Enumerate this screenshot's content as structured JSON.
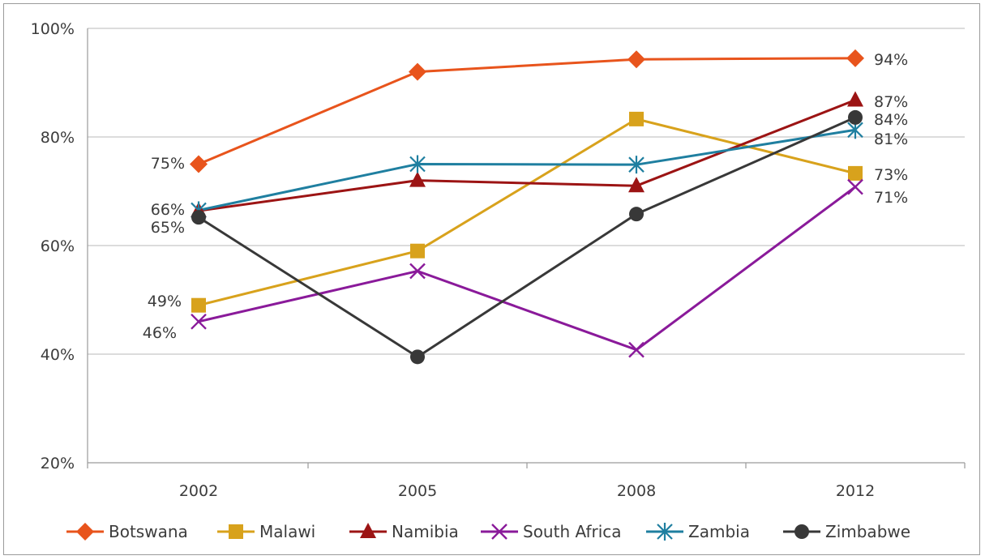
{
  "chart_data": {
    "type": "line",
    "x": [
      "2002",
      "2005",
      "2008",
      "2012"
    ],
    "ylim": [
      20,
      100
    ],
    "yticks": [
      "20%",
      "40%",
      "60%",
      "80%",
      "100%"
    ],
    "grid": true,
    "legend_position": "bottom",
    "series": [
      {
        "name": "Botswana",
        "color": "#e8541c",
        "marker": "diamond",
        "values": [
          75,
          92,
          94.3,
          94.5
        ],
        "labels": [
          "75%",
          null,
          null,
          "94%"
        ]
      },
      {
        "name": "Malawi",
        "color": "#d8a21c",
        "marker": "square",
        "values": [
          49,
          59,
          83.3,
          73.3
        ],
        "labels": [
          "49%",
          null,
          null,
          "73%"
        ]
      },
      {
        "name": "Namibia",
        "color": "#9c1414",
        "marker": "triangle",
        "values": [
          66.4,
          72,
          71,
          86.8
        ],
        "labels": [
          null,
          null,
          null,
          "87%"
        ]
      },
      {
        "name": "South Africa",
        "color": "#8a1a9a",
        "marker": "x",
        "values": [
          46,
          55.3,
          40.8,
          70.8
        ],
        "labels": [
          "46%",
          null,
          null,
          "71%"
        ]
      },
      {
        "name": "Zambia",
        "color": "#1f7fa0",
        "marker": "star",
        "values": [
          66.5,
          75,
          74.9,
          81.3
        ],
        "labels": [
          "66%",
          null,
          null,
          "81%"
        ]
      },
      {
        "name": "Zimbabwe",
        "color": "#383838",
        "marker": "circle",
        "values": [
          65.2,
          39.5,
          65.8,
          83.6
        ],
        "labels": [
          "65%",
          null,
          null,
          "84%"
        ]
      }
    ]
  }
}
